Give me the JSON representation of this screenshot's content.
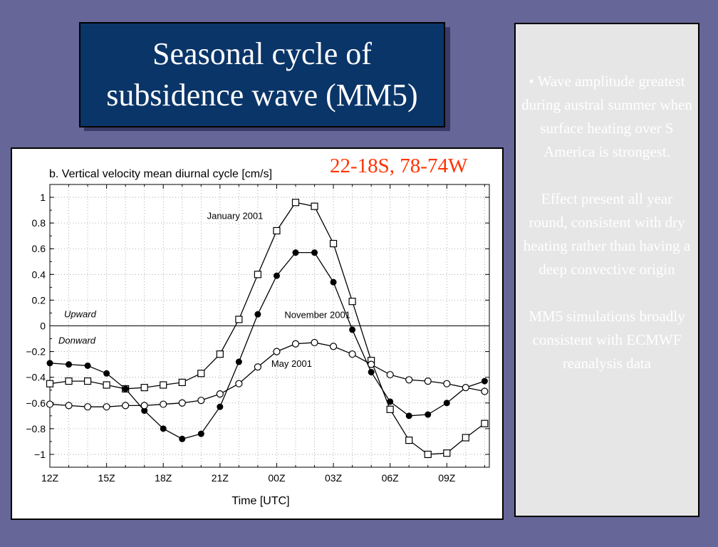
{
  "slide": {
    "title_line1": "Seasonal cycle of",
    "title_line2": "subsidence wave (MM5)",
    "bullets": [
      "• Wave amplitude greatest during austral summer when surface heating over S America is strongest.",
      "Effect present all year round, consistent with dry heating rather than having a deep convective origin",
      "MM5 simulations broadly consistent with ECMWF reanalysis data"
    ],
    "region_label": "22-18S, 78-74W"
  },
  "colors": {
    "background": "#666699",
    "title_bg": "#0a3568",
    "region_label": "#ff3300",
    "panel_bg": "#e6e6e6"
  },
  "chart_data": {
    "type": "line",
    "title": "b. Vertical velocity mean diurnal cycle [cm/s]",
    "xlabel": "Time [UTC]",
    "ylabel": "",
    "x_ticks": [
      "12Z",
      "15Z",
      "18Z",
      "21Z",
      "00Z",
      "03Z",
      "06Z",
      "09Z"
    ],
    "x_hours": [
      0,
      1,
      2,
      3,
      4,
      5,
      6,
      7,
      8,
      9,
      10,
      11,
      12,
      13,
      14,
      15,
      16,
      17,
      18,
      19,
      20,
      21,
      22,
      23
    ],
    "x_range_hours": [
      0,
      23.25
    ],
    "ylim": [
      -1.1,
      1.1
    ],
    "y_ticks": [
      1,
      0.8,
      0.6,
      0.4,
      0.2,
      0,
      -0.2,
      -0.4,
      -0.6,
      -0.8,
      -1
    ],
    "y_tick_labels": [
      "1",
      "0.8",
      "0.6",
      "0.4",
      "0.2",
      "0",
      "−0.2",
      "−0.4",
      "−0.6",
      "−0.8",
      "−1"
    ],
    "grid": "dotted",
    "zero_line": true,
    "annotations": {
      "upward": "Upward",
      "downward": "Donward"
    },
    "series": [
      {
        "name": "January 2001",
        "marker": "open-square",
        "values": [
          -0.45,
          -0.43,
          -0.43,
          -0.46,
          -0.49,
          -0.48,
          -0.46,
          -0.44,
          -0.37,
          -0.22,
          0.05,
          0.4,
          0.74,
          0.96,
          0.93,
          0.64,
          0.19,
          -0.27,
          -0.65,
          -0.89,
          -1.0,
          -0.99,
          -0.87,
          -0.76
        ]
      },
      {
        "name": "November 2001",
        "marker": "filled-circle",
        "values": [
          -0.29,
          -0.3,
          -0.31,
          -0.37,
          -0.49,
          -0.66,
          -0.8,
          -0.88,
          -0.84,
          -0.63,
          -0.28,
          0.09,
          0.39,
          0.57,
          0.57,
          0.34,
          -0.03,
          -0.36,
          -0.59,
          -0.7,
          -0.69,
          -0.6,
          -0.48,
          -0.43
        ]
      },
      {
        "name": "May 2001",
        "marker": "open-circle",
        "values": [
          -0.61,
          -0.62,
          -0.63,
          -0.63,
          -0.62,
          -0.62,
          -0.61,
          -0.6,
          -0.58,
          -0.53,
          -0.45,
          -0.32,
          -0.2,
          -0.14,
          -0.13,
          -0.16,
          -0.22,
          -0.3,
          -0.38,
          -0.42,
          -0.43,
          -0.45,
          -0.48,
          -0.51
        ]
      }
    ]
  }
}
